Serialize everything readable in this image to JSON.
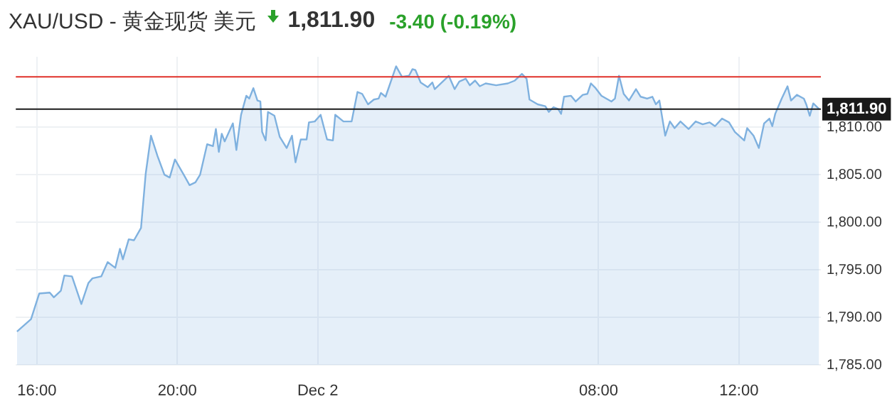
{
  "chart_data": {
    "type": "area",
    "title": "XAU/USD - 黄金现货 美元",
    "annotations": [
      "1,811.90",
      "-3.40 (-0.19%)"
    ],
    "x": [
      "--12-01T15:26",
      "--12-01T15:50",
      "--12-01T16:04",
      "--12-01T16:22",
      "--12-01T16:29",
      "--12-01T16:41",
      "--12-01T16:47",
      "--12-01T17:00",
      "--12-01T17:16",
      "--12-01T17:28",
      "--12-01T17:35",
      "--12-01T17:50",
      "--12-01T18:01",
      "--12-01T18:14",
      "--12-01T18:22",
      "--12-01T18:27",
      "--12-01T18:37",
      "--12-01T18:46",
      "--12-01T18:58",
      "--12-01T19:06",
      "--12-01T19:15",
      "--12-01T19:26",
      "--12-01T19:38",
      "--12-01T19:47",
      "--12-01T19:56",
      "--12-01T20:11",
      "--12-01T20:21",
      "--12-01T20:31",
      "--12-01T20:39",
      "--12-01T20:51",
      "--12-01T21:01",
      "--12-01T21:06",
      "--12-01T21:11",
      "--12-01T21:16",
      "--12-01T21:21",
      "--12-01T21:35",
      "--12-01T21:41",
      "--12-01T21:49",
      "--12-01T21:58",
      "--12-01T22:03",
      "--12-01T22:10",
      "--12-01T22:17",
      "--12-01T22:22",
      "--12-01T22:25",
      "--12-01T22:31",
      "--12-01T22:35",
      "--12-01T22:46",
      "--12-01T22:55",
      "--12-01T23:07",
      "--12-01T23:16",
      "--12-01T23:22",
      "--12-01T23:31",
      "--12-01T23:41",
      "--12-01T23:45",
      "--12-01T23:55",
      "--12-02T00:05",
      "--12-02T00:16",
      "--12-02T00:26",
      "--12-02T00:30",
      "--12-02T00:44",
      "--12-02T00:58",
      "--12-02T01:08",
      "--12-02T01:16",
      "--12-02T01:26",
      "--12-02T01:36",
      "--12-02T01:44",
      "--12-02T01:48",
      "--12-02T01:56",
      "--12-02T02:14",
      "--12-02T02:24",
      "--12-02T02:36",
      "--12-02T02:42",
      "--12-02T02:47",
      "--12-02T02:56",
      "--12-02T03:08",
      "--12-02T03:16",
      "--12-02T03:20",
      "--12-02T03:44",
      "--12-02T03:54",
      "--12-02T04:02",
      "--12-02T04:13",
      "--12-02T04:20",
      "--12-02T04:29",
      "--12-02T04:37",
      "--12-02T04:47",
      "--12-02T05:05",
      "--12-02T05:25",
      "--12-02T05:37",
      "--12-02T05:49",
      "--12-02T05:57",
      "--12-02T06:02",
      "--12-02T06:16",
      "--12-02T06:29",
      "--12-02T06:35",
      "--12-02T06:43",
      "--12-02T06:51",
      "--12-02T06:56",
      "--12-02T07:01",
      "--12-02T07:13",
      "--12-02T07:21",
      "--12-02T07:33",
      "--12-02T07:41",
      "--12-02T07:47",
      "--12-02T07:55",
      "--12-02T08:05",
      "--12-02T08:22",
      "--12-02T08:28",
      "--12-02T08:35",
      "--12-02T08:43",
      "--12-02T08:52",
      "--12-02T09:04",
      "--12-02T09:12",
      "--12-02T09:23",
      "--12-02T09:32",
      "--12-02T09:38",
      "--12-02T09:44",
      "--12-02T09:54",
      "--12-02T10:02",
      "--12-02T10:10",
      "--12-02T10:20",
      "--12-02T10:34",
      "--12-02T10:46",
      "--12-02T10:58",
      "--12-02T11:10",
      "--12-02T11:19",
      "--12-02T11:31",
      "--12-02T11:43",
      "--12-02T11:53",
      "--12-02T12:09",
      "--12-02T12:14",
      "--12-02T12:25",
      "--12-02T12:34",
      "--12-02T12:43",
      "--12-02T12:52",
      "--12-02T12:57",
      "--12-02T13:02",
      "--12-02T13:13",
      "--12-02T13:23",
      "--12-02T13:29",
      "--12-02T13:39",
      "--12-02T13:51",
      "--12-02T13:55",
      "--12-02T14:01",
      "--12-02T14:07",
      "--12-02T14:17"
    ],
    "series": [
      {
        "color": "#7fb1df",
        "values": [
          1788.5,
          1789.8,
          1792.5,
          1792.6,
          1792.1,
          1792.8,
          1794.4,
          1794.3,
          1791.4,
          1793.6,
          1794.1,
          1794.3,
          1795.8,
          1795.2,
          1797.2,
          1796.1,
          1798.2,
          1798.1,
          1799.4,
          1805.1,
          1809.1,
          1807.0,
          1805.0,
          1804.7,
          1806.6,
          1805.0,
          1803.9,
          1804.2,
          1805.0,
          1808.2,
          1808.0,
          1809.8,
          1807.4,
          1809.3,
          1808.5,
          1810.4,
          1807.6,
          1811.3,
          1813.3,
          1813.0,
          1814.1,
          1812.8,
          1812.7,
          1809.5,
          1808.6,
          1811.6,
          1811.2,
          1809.0,
          1807.8,
          1809.1,
          1806.3,
          1808.7,
          1808.7,
          1810.5,
          1810.6,
          1811.3,
          1808.7,
          1808.6,
          1811.3,
          1810.6,
          1810.6,
          1813.7,
          1813.5,
          1812.4,
          1812.9,
          1813.0,
          1813.6,
          1813.2,
          1816.4,
          1815.3,
          1815.4,
          1816.1,
          1816.0,
          1814.7,
          1814.2,
          1814.7,
          1814.0,
          1815.4,
          1814.0,
          1814.8,
          1815.1,
          1814.4,
          1814.9,
          1814.3,
          1814.6,
          1814.4,
          1814.6,
          1814.9,
          1815.6,
          1815.1,
          1812.9,
          1812.4,
          1812.2,
          1811.6,
          1812.1,
          1811.9,
          1811.4,
          1813.2,
          1813.3,
          1812.7,
          1813.4,
          1813.5,
          1814.6,
          1814.1,
          1813.3,
          1812.7,
          1813.0,
          1815.4,
          1813.5,
          1812.8,
          1814.0,
          1813.2,
          1813.0,
          1813.2,
          1812.4,
          1812.8,
          1809.1,
          1810.6,
          1809.9,
          1810.6,
          1809.8,
          1810.6,
          1810.3,
          1810.5,
          1810.1,
          1810.9,
          1810.5,
          1809.5,
          1808.6,
          1809.9,
          1809.1,
          1807.8,
          1810.4,
          1810.9,
          1810.1,
          1811.4,
          1813.0,
          1814.3,
          1812.8,
          1813.4,
          1813.0,
          1812.4,
          1811.2,
          1812.5,
          1811.9
        ]
      }
    ],
    "xlim": [
      "--12-01T15:24",
      "--12-02T14:20"
    ],
    "xticks": [
      {
        "value": "--12-01T16:00",
        "label": "16:00"
      },
      {
        "value": "--12-01T20:00",
        "label": "20:00"
      },
      {
        "value": "--12-02T00:00",
        "label": "Dec 2"
      },
      {
        "value": "--12-02T08:00",
        "label": "08:00"
      },
      {
        "value": "--12-02T12:00",
        "label": "12:00"
      }
    ],
    "ylim": [
      1785,
      1817.4
    ],
    "yticks": [
      {
        "value": 1785,
        "label": "1,785.00"
      },
      {
        "value": 1790,
        "label": "1,790.00"
      },
      {
        "value": 1795,
        "label": "1,795.00"
      },
      {
        "value": 1800,
        "label": "1,800.00"
      },
      {
        "value": 1805,
        "label": "1,805.00"
      },
      {
        "value": 1810,
        "label": "1,810.00"
      }
    ],
    "ref_lines": [
      {
        "axis": "y",
        "value": 1815.3,
        "color": "#e0302a"
      },
      {
        "axis": "y",
        "value": 1811.9,
        "label": "1,811.90",
        "color": "#1a1a1a"
      }
    ],
    "grid": true,
    "legend": false,
    "marker": "none",
    "line_style": "solid"
  }
}
